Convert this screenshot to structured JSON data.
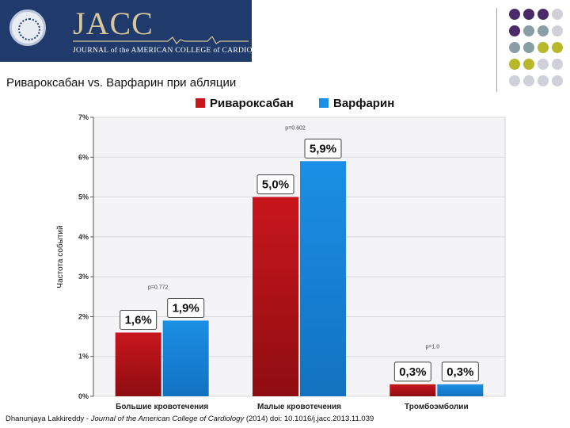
{
  "header": {
    "logo_text": "JACC",
    "journal_name": "JOURNAL of the AMERICAN COLLEGE of CARDIOLOGY",
    "colors": {
      "banner": "#1f3a6b",
      "logo": "#d8c79a"
    }
  },
  "slide_title": "Ривароксабан vs. Варфарин при абляции",
  "citation": {
    "authors": "Dhanunjaya Lakkireddy - ",
    "journal": "Journal of the American College of Cardiology",
    "details": " (2014) doi: 10.1016/j.jacc.2013.11.039"
  },
  "chart_data": {
    "type": "bar",
    "title": "",
    "ylabel": "Частота событий",
    "xlabel": "",
    "ylim": [
      0,
      7
    ],
    "yticks": [
      "0%",
      "1%",
      "2%",
      "3%",
      "4%",
      "5%",
      "6%",
      "7%"
    ],
    "grid": true,
    "legend_position": "top",
    "categories": [
      "Большие кровотечения",
      "Малые кровотечения",
      "Тромбоэмболии"
    ],
    "series": [
      {
        "name": "Ривароксабан",
        "color": "#c8161d",
        "values": [
          1.6,
          5.0,
          0.3
        ],
        "labels": [
          "1,6%",
          "5,0%",
          "0,3%"
        ]
      },
      {
        "name": "Варфарин",
        "color": "#1b8fe6",
        "values": [
          1.9,
          5.9,
          0.3
        ],
        "labels": [
          "1,9%",
          "5,9%",
          "0,3%"
        ]
      }
    ],
    "pvalues": [
      "p=0.772",
      "p=0.602",
      "p=1.0"
    ]
  }
}
